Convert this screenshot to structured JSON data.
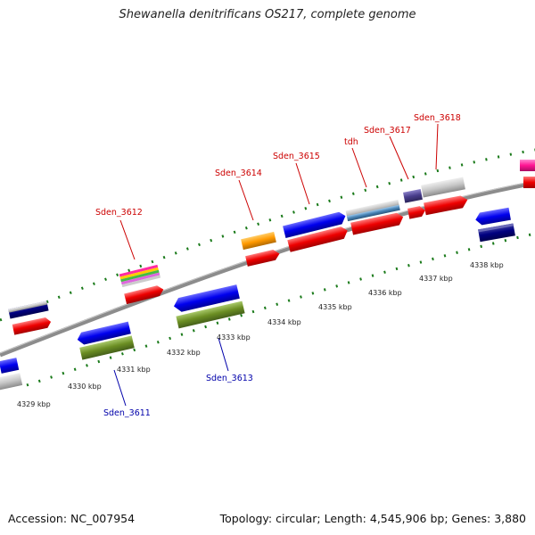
{
  "title": "Shewanella denitrificans OS217, complete genome",
  "footer": {
    "accession": "Accession: NC_007954",
    "topology": "Topology: circular; Length: 4,545,906 bp; Genes: 3,880"
  },
  "ticks": [
    "4329 kbp",
    "4330 kbp",
    "4331 kbp",
    "4332 kbp",
    "4333 kbp",
    "4334 kbp",
    "4335 kbp",
    "4336 kbp",
    "4337 kbp",
    "4338 kbp"
  ],
  "gene_labels": {
    "plus": [
      "Sden_3612",
      "Sden_3614",
      "Sden_3615",
      "tdh",
      "Sden_3617",
      "Sden_3618"
    ],
    "minus": [
      "Sden_3611",
      "Sden_3613"
    ]
  },
  "colors": {
    "label_plus": "#cc0000",
    "label_minus": "#0000aa",
    "dots": "#1a7a1a",
    "backbone": "#8c8c8c"
  }
}
